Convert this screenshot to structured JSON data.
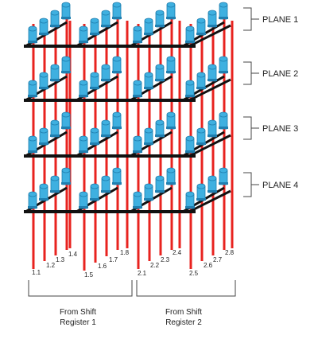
{
  "planes": [
    {
      "label": "PLANE 1"
    },
    {
      "label": "PLANE 2"
    },
    {
      "label": "PLANE 3"
    },
    {
      "label": "PLANE 4"
    }
  ],
  "pins": [
    {
      "label": "1.1"
    },
    {
      "label": "1.2"
    },
    {
      "label": "1.3"
    },
    {
      "label": "1.4"
    },
    {
      "label": "1.5"
    },
    {
      "label": "1.6"
    },
    {
      "label": "1.7"
    },
    {
      "label": "1.8"
    },
    {
      "label": "2.1"
    },
    {
      "label": "2.2"
    },
    {
      "label": "2.3"
    },
    {
      "label": "2.4"
    },
    {
      "label": "2.5"
    },
    {
      "label": "2.6"
    },
    {
      "label": "2.7"
    },
    {
      "label": "2.8"
    }
  ],
  "groups": [
    {
      "line1": "From Shift",
      "line2": "Register 1"
    },
    {
      "line1": "From Shift",
      "line2": "Register 2"
    }
  ],
  "colors": {
    "wire": "#e8231f",
    "bus": "#111111",
    "led": "#3fb0e0",
    "led_outline": "#1f7fb0",
    "bracket": "#444444"
  }
}
